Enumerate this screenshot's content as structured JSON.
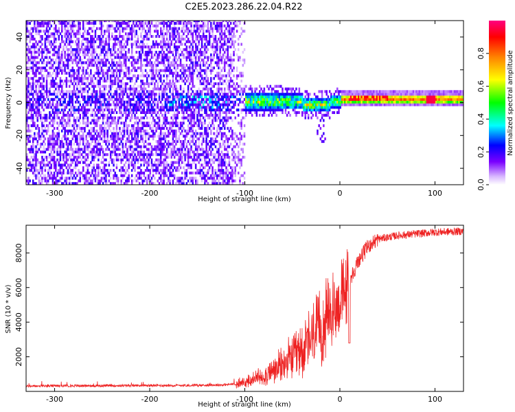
{
  "figure_title": "C2E5.2023.286.22.04.R22",
  "chart_data": [
    {
      "type": "heatmap",
      "name": "spectrogram",
      "title": "C2E5.2023.286.22.04.R22",
      "xlabel": "Height of straight line (km)",
      "ylabel": "Frequency (Hz)",
      "xlim": [
        -330,
        130
      ],
      "ylim": [
        -50,
        50
      ],
      "xticks": [
        -300,
        -200,
        -100,
        0,
        100
      ],
      "yticks": [
        -40,
        -20,
        0,
        20,
        40
      ],
      "colorbar": {
        "label": "Normalized spectral amplitude",
        "range": [
          0.0,
          1.0
        ],
        "ticks": [
          0.0,
          0.2,
          0.4,
          0.6,
          0.8
        ],
        "colormap": [
          "#ffffff",
          "#c8a0ff",
          "#7a00ff",
          "#0000ff",
          "#00ffff",
          "#00ff00",
          "#ffff00",
          "#ff8000",
          "#ff0000",
          "#ff0080"
        ]
      },
      "features": [
        {
          "region": "x < -100",
          "description": "broadband noise across all frequencies",
          "amplitude_range": [
            0.0,
            0.15
          ]
        },
        {
          "region": "-100 to 0",
          "center_freq": 0,
          "bandwidth": 8,
          "amplitude_range": [
            0.2,
            0.7
          ]
        },
        {
          "region": "x > 0",
          "center_freq": 1.5,
          "bandwidth": 3,
          "amplitude_range": [
            0.5,
            0.95
          ]
        }
      ]
    },
    {
      "type": "line",
      "name": "snr",
      "xlabel": "Height of straight line (km)",
      "ylabel": "SNR (10 * v/v)",
      "xlim": [
        -330,
        130
      ],
      "ylim": [
        0,
        9600
      ],
      "xticks": [
        -300,
        -200,
        -100,
        0,
        100
      ],
      "yticks": [
        2000,
        4000,
        6000,
        8000
      ],
      "series": [
        {
          "name": "SNR",
          "color": "#ee2222",
          "x": [
            -330,
            -300,
            -250,
            -200,
            -150,
            -120,
            -100,
            -80,
            -60,
            -40,
            -20,
            -10,
            0,
            10,
            20,
            30,
            40,
            60,
            80,
            100,
            130
          ],
          "y": [
            300,
            320,
            330,
            340,
            350,
            380,
            500,
            900,
            1500,
            2400,
            3600,
            4500,
            5200,
            6400,
            7600,
            8400,
            8800,
            9000,
            9100,
            9200,
            9250
          ]
        }
      ]
    }
  ]
}
